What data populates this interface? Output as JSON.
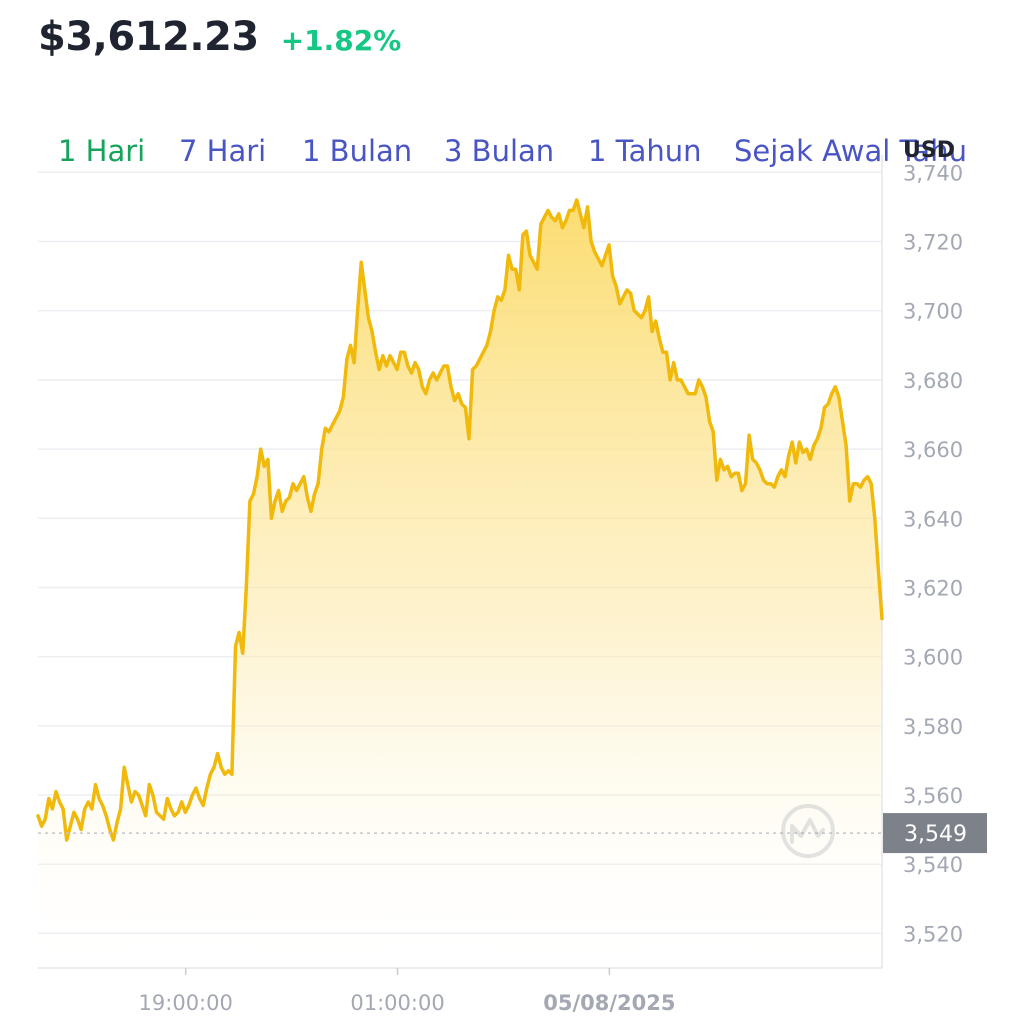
{
  "header": {
    "price": "$3,612.23",
    "change": "+1.82%"
  },
  "tabs": [
    {
      "label": "1 Hari",
      "active": true
    },
    {
      "label": "7 Hari",
      "active": false
    },
    {
      "label": "1 Bulan",
      "active": false
    },
    {
      "label": "3 Bulan",
      "active": false
    },
    {
      "label": "1 Tahun",
      "active": false
    },
    {
      "label": "Sejak Awal Tahu",
      "active": false
    }
  ],
  "currency": "USD",
  "colors": {
    "line": "#f0b90b",
    "positive": "#16c784",
    "active_tab": "#16a35a",
    "tab": "#4a55c4",
    "current_label_bg": "#7d8189"
  },
  "chart_data": {
    "type": "area",
    "ylim": [
      3510,
      3745
    ],
    "yticks": [
      3740,
      3720,
      3700,
      3680,
      3660,
      3640,
      3620,
      3600,
      3580,
      3560,
      3540,
      3520
    ],
    "ytick_labels": [
      "3,740",
      "3,720",
      "3,700",
      "3,680",
      "3,660",
      "3,640",
      "3,620",
      "3,600",
      "3,580",
      "3,560",
      "3,540",
      "3,520"
    ],
    "xticks": [
      {
        "label": "19:00:00",
        "t": 0.175,
        "bold": false
      },
      {
        "label": "01:00:00",
        "t": 0.426,
        "bold": false
      },
      {
        "label": "05/08/2025",
        "t": 0.677,
        "bold": true
      }
    ],
    "reference_value": 3549,
    "reference_label": "3,549",
    "series": [
      {
        "values": [
          3554,
          3551,
          3553,
          3559,
          3556,
          3561,
          3558,
          3556,
          3547,
          3551,
          3555,
          3553,
          3550,
          3556,
          3558,
          3556,
          3563,
          3559,
          3557,
          3554,
          3550,
          3547,
          3552,
          3556,
          3568,
          3563,
          3558,
          3561,
          3560,
          3557,
          3554,
          3563,
          3560,
          3555,
          3554,
          3553,
          3559,
          3556,
          3554,
          3555,
          3558,
          3555,
          3557,
          3560,
          3562,
          3559,
          3557,
          3562,
          3566,
          3568,
          3572,
          3568,
          3566,
          3567,
          3566,
          3603,
          3607,
          3601,
          3620,
          3645,
          3647,
          3652,
          3660,
          3655,
          3657,
          3640,
          3645,
          3648,
          3642,
          3645,
          3646,
          3650,
          3648,
          3650,
          3652,
          3646,
          3642,
          3647,
          3650,
          3660,
          3666,
          3665,
          3667,
          3669,
          3671,
          3675,
          3686,
          3690,
          3685,
          3700,
          3714,
          3706,
          3698,
          3694,
          3688,
          3683,
          3687,
          3684,
          3687,
          3685,
          3683,
          3688,
          3688,
          3684,
          3682,
          3685,
          3683,
          3678,
          3676,
          3680,
          3682,
          3680,
          3682,
          3684,
          3684,
          3678,
          3674,
          3676,
          3673,
          3672,
          3663,
          3683,
          3684,
          3686,
          3688,
          3690,
          3694,
          3700,
          3704,
          3703,
          3706,
          3716,
          3712,
          3712,
          3706,
          3722,
          3723,
          3716,
          3714,
          3712,
          3725,
          3727,
          3729,
          3727,
          3726,
          3728,
          3724,
          3726,
          3729,
          3729,
          3732,
          3728,
          3724,
          3730,
          3720,
          3717,
          3715,
          3713,
          3716,
          3719,
          3710,
          3707,
          3702,
          3704,
          3706,
          3705,
          3700,
          3699,
          3698,
          3700,
          3704,
          3694,
          3697,
          3692,
          3688,
          3688,
          3680,
          3685,
          3680,
          3680,
          3678,
          3676,
          3676,
          3676,
          3680,
          3678,
          3675,
          3668,
          3665,
          3651,
          3657,
          3654,
          3655,
          3652,
          3653,
          3653,
          3648,
          3650,
          3664,
          3657,
          3656,
          3654,
          3651,
          3650,
          3650,
          3649,
          3652,
          3654,
          3652,
          3658,
          3662,
          3656,
          3662,
          3659,
          3660,
          3657,
          3661,
          3663,
          3666,
          3672,
          3673,
          3676,
          3678,
          3675,
          3668,
          3661,
          3645,
          3650,
          3650,
          3649,
          3651,
          3652,
          3650,
          3640,
          3625,
          3611
        ]
      }
    ]
  }
}
